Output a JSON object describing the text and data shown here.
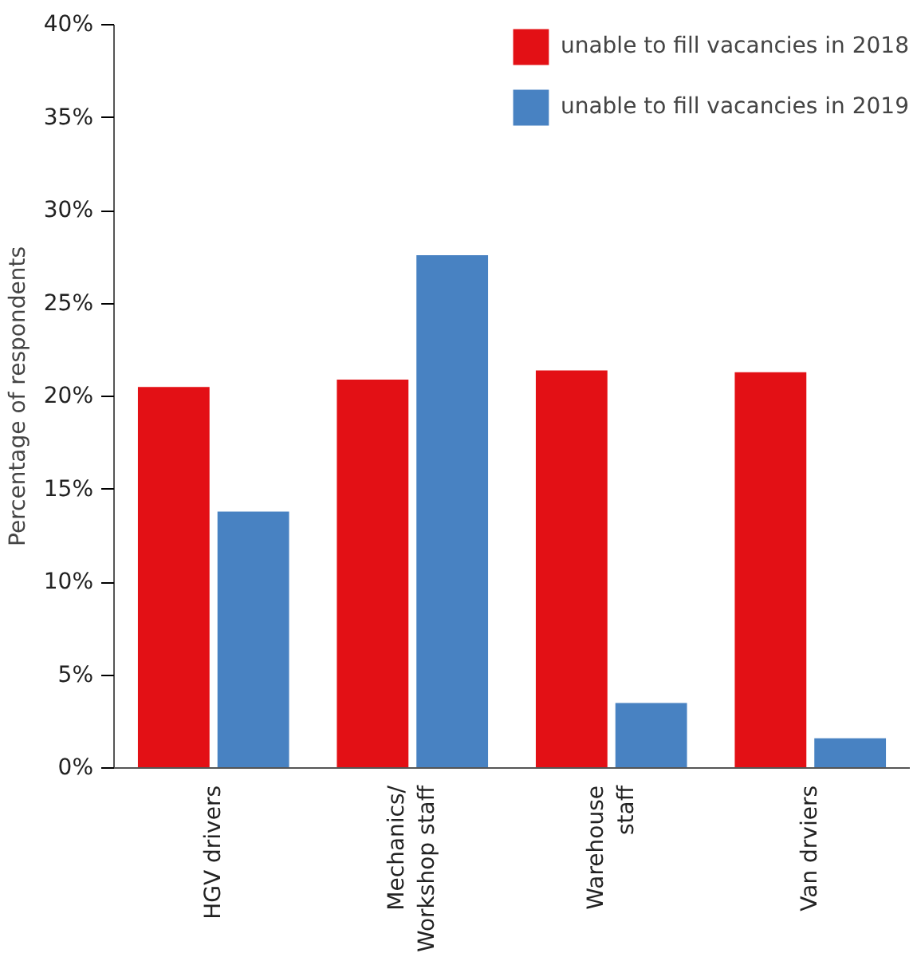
{
  "chart_data": {
    "type": "bar",
    "ylabel": "Percentage of respondents",
    "categories": [
      "HGV drivers",
      "Mechanics/\nWorkshop staff",
      "Warehouse\nstaff",
      "Van drviers"
    ],
    "series": [
      {
        "name": "unable to fill vacancies in 2018",
        "color": "#e31015",
        "values": [
          20.5,
          20.9,
          21.4,
          21.3
        ]
      },
      {
        "name": "unable to fill vacancies in 2019",
        "color": "#4882c2",
        "values": [
          13.8,
          27.6,
          3.5,
          1.6
        ]
      }
    ],
    "ylim": [
      0,
      40
    ],
    "yticks": [
      {
        "value": 0,
        "label": "0%"
      },
      {
        "value": 5,
        "label": "5%"
      },
      {
        "value": 10,
        "label": "10%"
      },
      {
        "value": 15,
        "label": "15%"
      },
      {
        "value": 20,
        "label": "20%"
      },
      {
        "value": 25,
        "label": "25%"
      },
      {
        "value": 30,
        "label": "30%"
      },
      {
        "value": 35,
        "label": "35%"
      },
      {
        "value": 40,
        "label": "40%"
      }
    ],
    "grid": false,
    "legend": "top right"
  }
}
